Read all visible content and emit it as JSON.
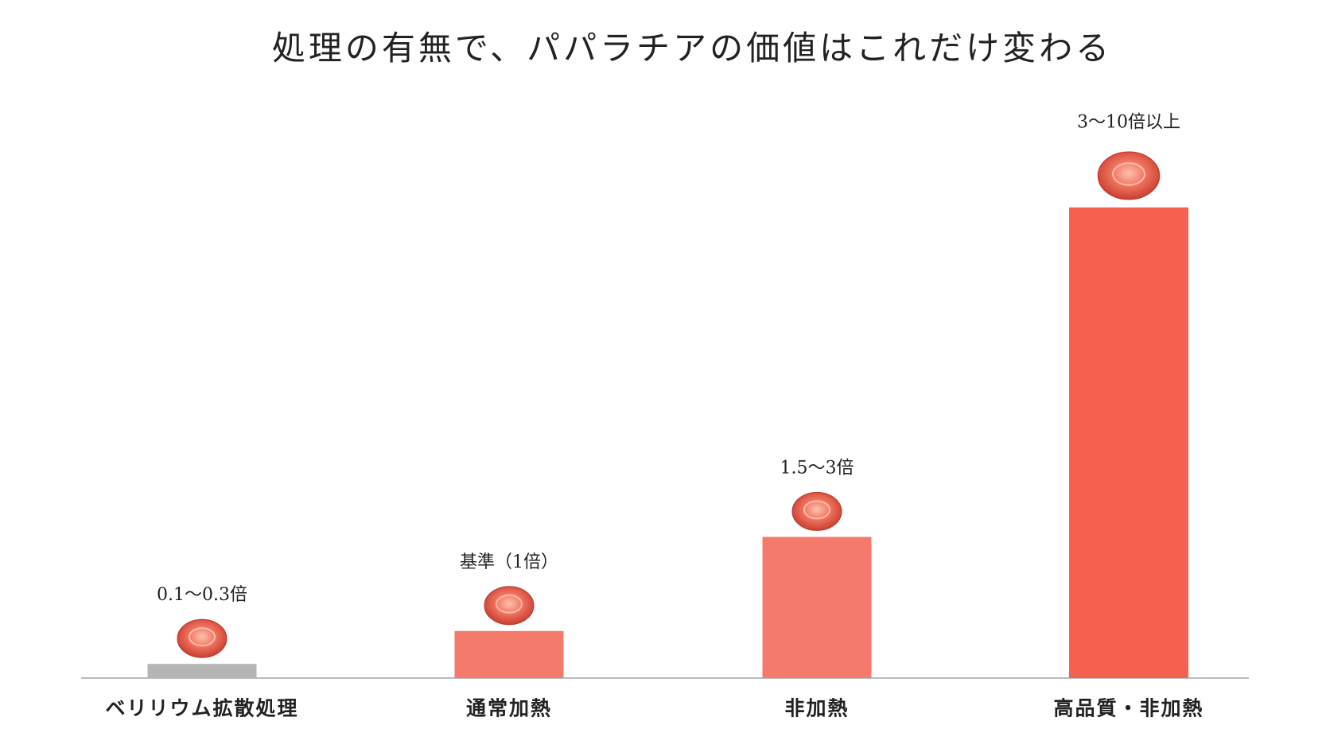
{
  "chart_data": {
    "type": "bar",
    "title": "処理の有無で、パパラチアの価値はこれだけ変わる",
    "categories": [
      "ベリリウム拡散処理",
      "通常加熱",
      "非加熱",
      "高品質・非加熱"
    ],
    "values": [
      0.3,
      1,
      3,
      10
    ],
    "value_labels": [
      "0.1〜0.3倍",
      "基準（1倍）",
      "1.5〜3倍",
      "3〜10倍以上"
    ],
    "colors": [
      "#b5b5b5",
      "#f47b6b",
      "#f47b6b",
      "#f5614f"
    ]
  }
}
